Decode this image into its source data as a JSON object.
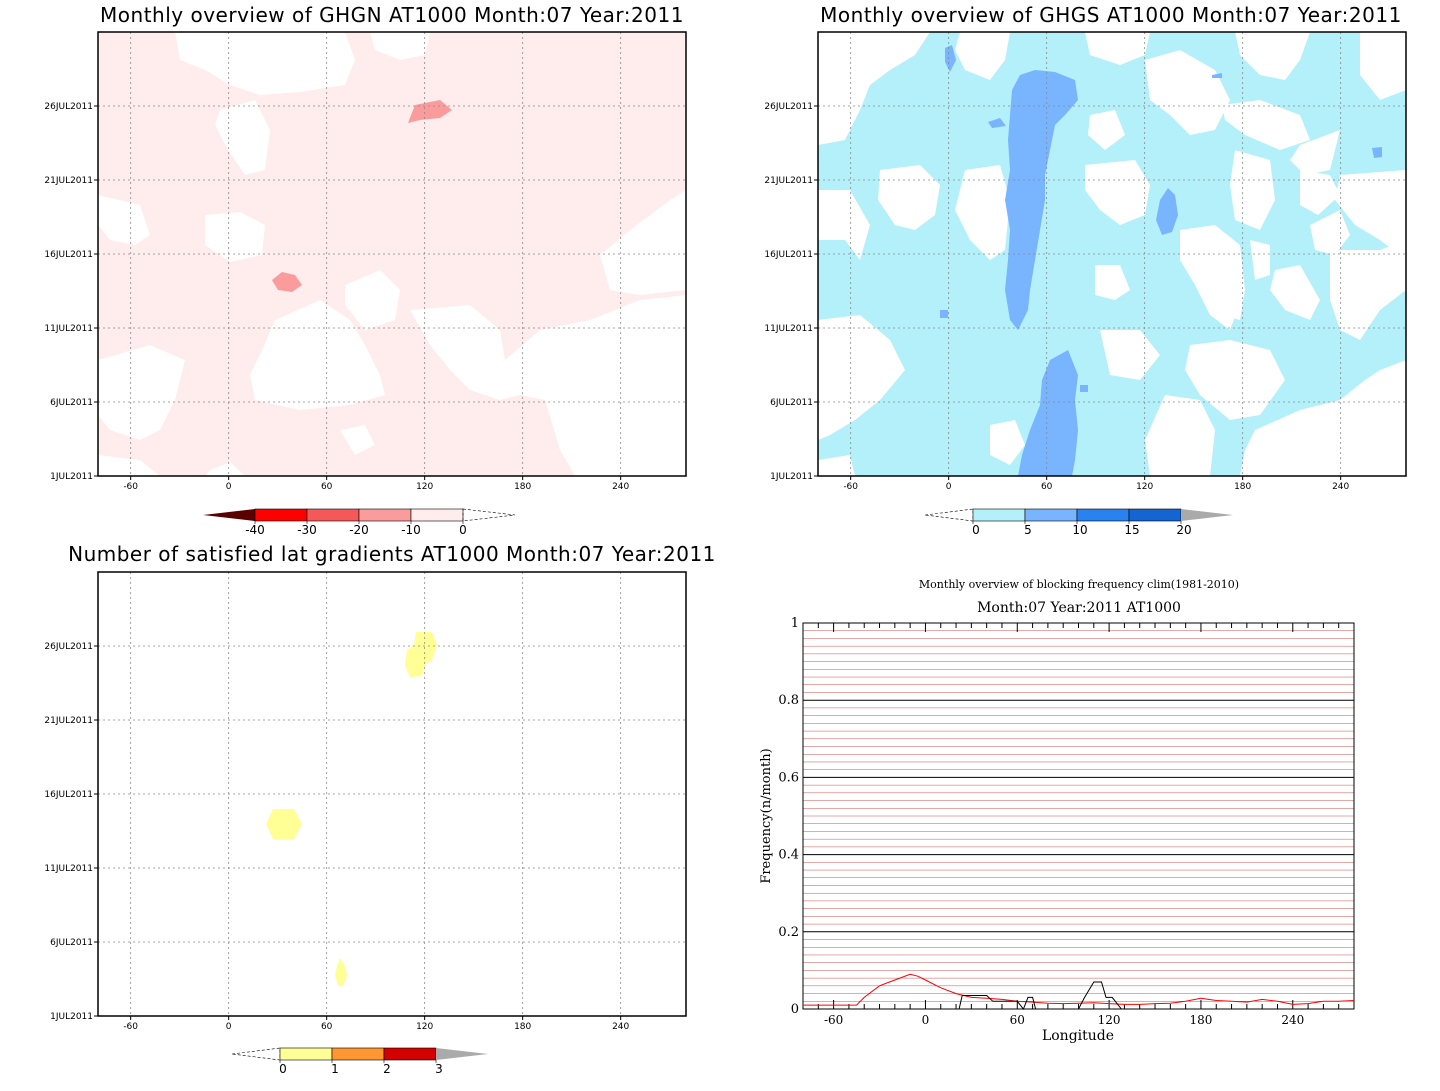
{
  "chart_data": [
    {
      "type": "heatmap",
      "title": "Monthly overview of GHGN AT1000 Month:07 Year:2011",
      "xticks": [
        "-60",
        "0",
        "60",
        "120",
        "180",
        "240"
      ],
      "yticks": [
        "1JUL2011",
        "6JUL2011",
        "11JUL2011",
        "16JUL2011",
        "21JUL2011",
        "26JUL2011"
      ],
      "xlim": [
        -80,
        280
      ],
      "ylim": [
        "1JUL2011",
        "31JUL2011"
      ],
      "grid": true,
      "colorbar": {
        "ticks": [
          "-40",
          "-30",
          "-20",
          "-10",
          "0"
        ],
        "colors": [
          "#5a0000",
          "#ff0000",
          "#f55858",
          "#fa9c9c",
          "#ffecec"
        ],
        "extend": "both"
      },
      "background_fill": "#ffecec",
      "features": [
        {
          "lon": 120,
          "date": "26JUL2011",
          "class": "-20 to -10"
        },
        {
          "lon": 35,
          "date": "15JUL2011",
          "class": "-20 to -10"
        }
      ]
    },
    {
      "type": "heatmap",
      "title": "Monthly overview of GHGS AT1000 Month:07 Year:2011",
      "xticks": [
        "-60",
        "0",
        "60",
        "120",
        "180",
        "240"
      ],
      "yticks": [
        "1JUL2011",
        "6JUL2011",
        "11JUL2011",
        "16JUL2011",
        "21JUL2011",
        "26JUL2011"
      ],
      "xlim": [
        -80,
        280
      ],
      "ylim": [
        "1JUL2011",
        "31JUL2011"
      ],
      "grid": true,
      "colorbar": {
        "ticks": [
          "0",
          "5",
          "10",
          "15",
          "20"
        ],
        "colors": [
          "#b4f0fa",
          "#78b4ff",
          "#2882f0",
          "#1464d2",
          "#aaaaaa"
        ],
        "extend": "both"
      },
      "features": [
        {
          "lon": 55,
          "date": "1JUL2011-31JUL2011",
          "class": "5 to 10"
        },
        {
          "lon": 130,
          "date": "19JUL2011",
          "class": "5 to 10"
        }
      ]
    },
    {
      "type": "heatmap",
      "title": "Number of satisfied lat gradients AT1000 Month:07 Year:2011",
      "xticks": [
        "-60",
        "0",
        "60",
        "120",
        "180",
        "240"
      ],
      "yticks": [
        "1JUL2011",
        "6JUL2011",
        "11JUL2011",
        "16JUL2011",
        "21JUL2011",
        "26JUL2011"
      ],
      "xlim": [
        -80,
        280
      ],
      "ylim": [
        "1JUL2011",
        "31JUL2011"
      ],
      "grid": true,
      "colorbar": {
        "ticks": [
          "0",
          "1",
          "2",
          "3"
        ],
        "colors": [
          "#ffff96",
          "#ff9632",
          "#d20000",
          "#aaaaaa"
        ],
        "extend": "both"
      },
      "features": [
        {
          "lon": 118,
          "date": "25JUL2011",
          "class": "0 to 1"
        },
        {
          "lon": 34,
          "date": "14JUL2011",
          "class": "0 to 1"
        },
        {
          "lon": 68,
          "date": "4JUL2011",
          "class": "0 to 1"
        }
      ]
    },
    {
      "type": "line",
      "title": "Monthly overview of blocking frequency clim(1981-2010)",
      "subtitle": "Month:07 Year:2011  AT1000",
      "xlabel": "Longitude",
      "ylabel": "Frequency(n/month)",
      "xlim": [
        -80,
        280
      ],
      "ylim": [
        0,
        1
      ],
      "xticks": [
        "-60",
        "0",
        "60",
        "120",
        "180",
        "240"
      ],
      "yticks": [
        "0",
        "0.2",
        "0.4",
        "0.6",
        "0.8",
        "1"
      ],
      "grid": true,
      "series": [
        {
          "color": "#ff0000",
          "x": [
            -80,
            -70,
            -60,
            -50,
            -45,
            -40,
            -30,
            -20,
            -10,
            -5,
            0,
            10,
            20,
            30,
            40,
            50,
            60,
            70,
            80,
            90,
            100,
            110,
            120,
            130,
            140,
            150,
            160,
            170,
            180,
            190,
            200,
            210,
            220,
            230,
            240,
            250,
            260,
            270,
            280
          ],
          "y": [
            0.01,
            0.01,
            0.01,
            0.01,
            0.01,
            0.03,
            0.06,
            0.075,
            0.09,
            0.085,
            0.075,
            0.055,
            0.04,
            0.03,
            0.028,
            0.025,
            0.02,
            0.018,
            0.015,
            0.014,
            0.015,
            0.016,
            0.014,
            0.012,
            0.012,
            0.014,
            0.015,
            0.02,
            0.028,
            0.022,
            0.02,
            0.018,
            0.025,
            0.02,
            0.012,
            0.014,
            0.02,
            0.02,
            0.022
          ]
        },
        {
          "color": "#000000",
          "x": [
            -80,
            22,
            24,
            40,
            44,
            60,
            64,
            67,
            70,
            72,
            100,
            104,
            110,
            115,
            118,
            122,
            128,
            140,
            280
          ],
          "y": [
            0,
            0,
            0.035,
            0.035,
            0.02,
            0.02,
            0,
            0.03,
            0.03,
            0,
            0,
            0.03,
            0.07,
            0.07,
            0.03,
            0.03,
            0,
            0,
            0
          ]
        }
      ]
    }
  ]
}
